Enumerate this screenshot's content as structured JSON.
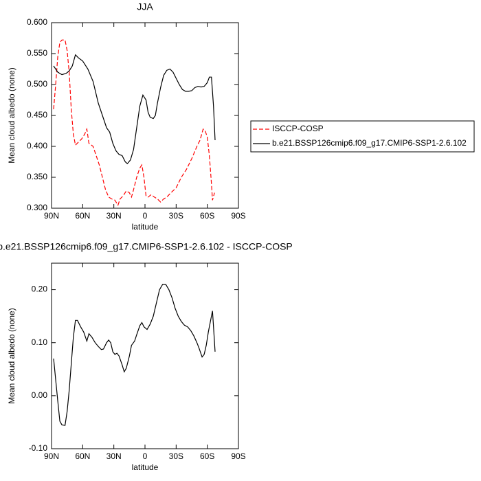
{
  "chart_data": [
    {
      "type": "line",
      "title": "JJA",
      "xlabel": "latitude",
      "ylabel": "Mean cloud albedo (none)",
      "xlim": [
        90,
        -90
      ],
      "xticks": [
        {
          "value": 90,
          "label": "90N"
        },
        {
          "value": 60,
          "label": "60N"
        },
        {
          "value": 30,
          "label": "30N"
        },
        {
          "value": 0,
          "label": "0"
        },
        {
          "value": -30,
          "label": "30S"
        },
        {
          "value": -60,
          "label": "60S"
        },
        {
          "value": -90,
          "label": "90S"
        }
      ],
      "ylim": [
        0.3,
        0.6
      ],
      "yticks": [
        {
          "value": 0.3,
          "label": "0.300"
        },
        {
          "value": 0.35,
          "label": "0.350"
        },
        {
          "value": 0.4,
          "label": "0.400"
        },
        {
          "value": 0.45,
          "label": "0.450"
        },
        {
          "value": 0.5,
          "label": "0.500"
        },
        {
          "value": 0.55,
          "label": "0.550"
        },
        {
          "value": 0.6,
          "label": "0.600"
        }
      ],
      "legend": "right",
      "series": [
        {
          "name": "ISCCP-COSP",
          "color": "#ff0000",
          "line_style": "dashed",
          "x": [
            88,
            86,
            84,
            82,
            80,
            77,
            75,
            73,
            71,
            69,
            67,
            64,
            61,
            58,
            56,
            54,
            50,
            47,
            44,
            41,
            38,
            35,
            32,
            29,
            26,
            24,
            21,
            18,
            15,
            13,
            11,
            8,
            5,
            3,
            1,
            -1,
            -3,
            -6,
            -9,
            -12,
            -15,
            -18,
            -21,
            -25,
            -30,
            -35,
            -40,
            -45,
            -50,
            -53,
            -56,
            -58,
            -60,
            -62,
            -64,
            -65,
            -67
          ],
          "values": [
            0.46,
            0.5,
            0.545,
            0.568,
            0.572,
            0.572,
            0.555,
            0.52,
            0.46,
            0.42,
            0.402,
            0.407,
            0.412,
            0.42,
            0.428,
            0.405,
            0.4,
            0.385,
            0.37,
            0.35,
            0.33,
            0.318,
            0.315,
            0.313,
            0.305,
            0.315,
            0.32,
            0.328,
            0.325,
            0.318,
            0.33,
            0.35,
            0.365,
            0.37,
            0.35,
            0.32,
            0.318,
            0.322,
            0.318,
            0.315,
            0.31,
            0.315,
            0.318,
            0.325,
            0.333,
            0.35,
            0.363,
            0.38,
            0.4,
            0.41,
            0.428,
            0.425,
            0.415,
            0.385,
            0.34,
            0.313,
            0.325
          ]
        },
        {
          "name": "b.e21.BSSP126cmip6.f09_g17.CMIP6-SSP1-2.6.102",
          "color": "#000000",
          "line_style": "solid",
          "x": [
            88,
            84,
            80,
            76,
            73,
            70,
            67,
            64,
            60,
            55,
            50,
            45,
            40,
            37,
            34,
            31,
            28,
            25,
            22,
            19,
            17,
            14,
            11,
            8,
            5,
            2,
            -1,
            -3,
            -5,
            -8,
            -10,
            -12,
            -15,
            -18,
            -21,
            -24,
            -27,
            -30,
            -33,
            -36,
            -39,
            -42,
            -45,
            -48,
            -51,
            -54,
            -57,
            -60,
            -62,
            -64,
            -66,
            -67.5
          ],
          "values": [
            0.53,
            0.52,
            0.516,
            0.518,
            0.522,
            0.53,
            0.548,
            0.543,
            0.538,
            0.525,
            0.505,
            0.47,
            0.445,
            0.43,
            0.423,
            0.405,
            0.393,
            0.387,
            0.385,
            0.375,
            0.372,
            0.378,
            0.395,
            0.43,
            0.465,
            0.483,
            0.475,
            0.455,
            0.447,
            0.445,
            0.45,
            0.47,
            0.495,
            0.515,
            0.523,
            0.525,
            0.52,
            0.51,
            0.5,
            0.492,
            0.489,
            0.489,
            0.49,
            0.495,
            0.497,
            0.496,
            0.497,
            0.503,
            0.512,
            0.512,
            0.465,
            0.41
          ]
        }
      ]
    },
    {
      "type": "line",
      "title": "b.e21.BSSP126cmip6.f09_g17.CMIP6-SSP1-2.6.102 - ISCCP-COSP",
      "xlabel": "latitude",
      "ylabel": "Mean cloud albedo (none)",
      "xlim": [
        90,
        -90
      ],
      "xticks": [
        {
          "value": 90,
          "label": "90N"
        },
        {
          "value": 60,
          "label": "60N"
        },
        {
          "value": 30,
          "label": "30N"
        },
        {
          "value": 0,
          "label": "0"
        },
        {
          "value": -30,
          "label": "30S"
        },
        {
          "value": -60,
          "label": "60S"
        },
        {
          "value": -90,
          "label": "90S"
        }
      ],
      "ylim": [
        -0.1,
        0.25
      ],
      "yticks": [
        {
          "value": -0.1,
          "label": "-0.10"
        },
        {
          "value": 0,
          "label": "0.00"
        },
        {
          "value": 0.1,
          "label": "0.10"
        },
        {
          "value": 0.2,
          "label": "0.20"
        }
      ],
      "series": [
        {
          "color": "#000000",
          "line_style": "solid",
          "x": [
            88,
            86,
            84,
            82,
            80,
            77,
            75,
            73,
            71,
            69,
            67,
            65,
            62,
            59,
            56,
            54,
            51,
            48,
            45,
            42,
            40,
            37,
            35,
            33,
            31,
            29,
            27,
            25,
            22,
            20,
            18,
            15,
            13,
            10,
            8,
            5,
            3,
            1,
            -2,
            -5,
            -8,
            -11,
            -14,
            -17,
            -20,
            -23,
            -26,
            -29,
            -32,
            -35,
            -38,
            -41,
            -44,
            -47,
            -50,
            -52,
            -55,
            -57,
            -59,
            -61,
            -63,
            -65,
            -66,
            -67.5
          ],
          "values": [
            0.07,
            0.03,
            -0.01,
            -0.048,
            -0.055,
            -0.056,
            -0.03,
            0.01,
            0.06,
            0.11,
            0.142,
            0.142,
            0.13,
            0.12,
            0.103,
            0.117,
            0.11,
            0.1,
            0.093,
            0.087,
            0.088,
            0.1,
            0.105,
            0.1,
            0.083,
            0.078,
            0.08,
            0.075,
            0.058,
            0.045,
            0.052,
            0.075,
            0.095,
            0.103,
            0.115,
            0.132,
            0.138,
            0.13,
            0.125,
            0.135,
            0.15,
            0.175,
            0.2,
            0.21,
            0.21,
            0.2,
            0.185,
            0.165,
            0.15,
            0.14,
            0.133,
            0.13,
            0.123,
            0.113,
            0.1,
            0.09,
            0.073,
            0.078,
            0.095,
            0.12,
            0.14,
            0.16,
            0.13,
            0.083
          ]
        }
      ]
    }
  ]
}
